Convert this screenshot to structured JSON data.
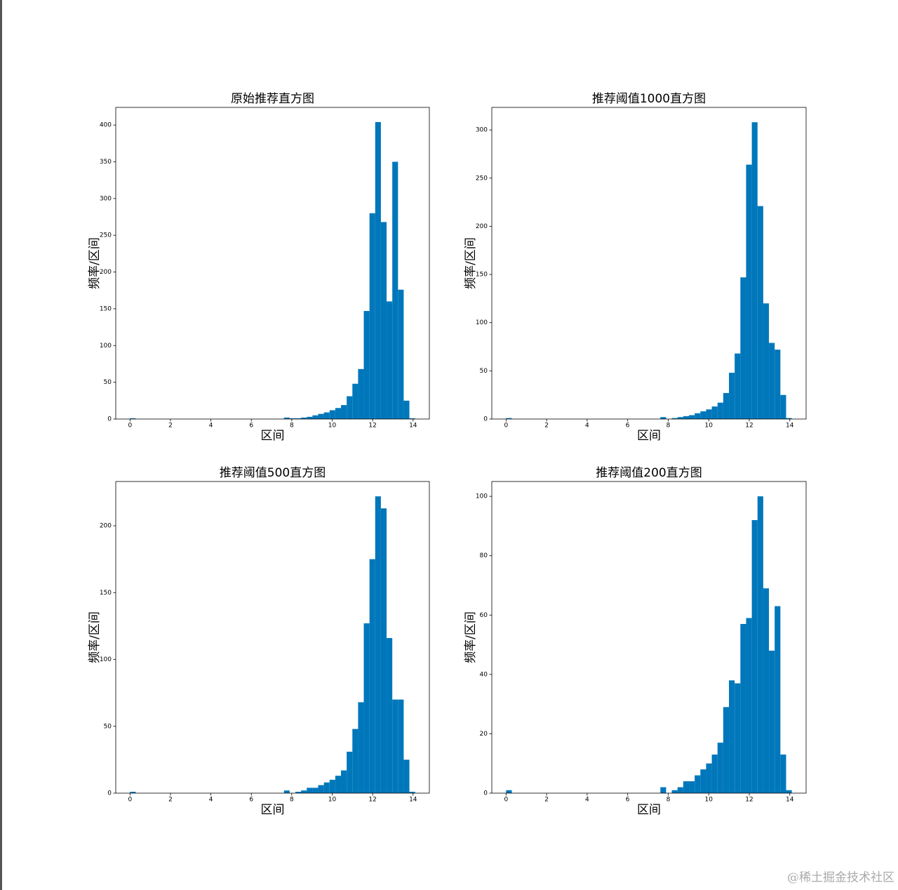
{
  "chart_data": [
    {
      "type": "histogram",
      "title": "原始推荐直方图",
      "xlabel": "区间",
      "ylabel": "频率/区间",
      "color": "#0077bb",
      "bins": [
        0,
        0.282,
        0.564,
        0.846,
        1.128,
        1.41,
        1.692,
        1.974,
        2.256,
        2.538,
        2.82,
        3.102,
        3.384,
        3.666,
        3.948,
        4.23,
        4.512,
        4.794,
        5.076,
        5.358,
        5.64,
        5.922,
        6.204,
        6.486,
        6.768,
        7.05,
        7.332,
        7.614,
        7.896,
        8.178,
        8.46,
        8.742,
        9.024,
        9.306,
        9.588,
        9.87,
        10.152,
        10.434,
        10.716,
        10.998,
        11.28,
        11.562,
        11.844,
        12.126,
        12.408,
        12.69,
        12.972,
        13.254,
        13.536,
        13.818,
        14.1
      ],
      "values": [
        1,
        0,
        0,
        0,
        0,
        0,
        0,
        0,
        0,
        0,
        0,
        0,
        0,
        0,
        0,
        0,
        0,
        0,
        0,
        0,
        0,
        0,
        0,
        0,
        0,
        0,
        0,
        2,
        1,
        1,
        2,
        3,
        5,
        7,
        9,
        12,
        15,
        19,
        31,
        48,
        68,
        147,
        280,
        404,
        268,
        160,
        350,
        176,
        25,
        1
      ],
      "xlim": [
        -0.705,
        14.805
      ],
      "xticks": [
        0,
        2,
        4,
        6,
        8,
        10,
        12,
        14
      ],
      "ylim": [
        0,
        424
      ],
      "yticks": [
        0,
        50,
        100,
        150,
        200,
        250,
        300,
        350,
        400
      ]
    },
    {
      "type": "histogram",
      "title": "推荐阈值1000直方图",
      "xlabel": "区间",
      "ylabel": "频率/区间",
      "color": "#0077bb",
      "bins": [
        0,
        0.282,
        0.564,
        0.846,
        1.128,
        1.41,
        1.692,
        1.974,
        2.256,
        2.538,
        2.82,
        3.102,
        3.384,
        3.666,
        3.948,
        4.23,
        4.512,
        4.794,
        5.076,
        5.358,
        5.64,
        5.922,
        6.204,
        6.486,
        6.768,
        7.05,
        7.332,
        7.614,
        7.896,
        8.178,
        8.46,
        8.742,
        9.024,
        9.306,
        9.588,
        9.87,
        10.152,
        10.434,
        10.716,
        10.998,
        11.28,
        11.562,
        11.844,
        12.126,
        12.408,
        12.69,
        12.972,
        13.254,
        13.536,
        13.818,
        14.1
      ],
      "values": [
        1,
        0,
        0,
        0,
        0,
        0,
        0,
        0,
        0,
        0,
        0,
        0,
        0,
        0,
        0,
        0,
        0,
        0,
        0,
        0,
        0,
        0,
        0,
        0,
        0,
        0,
        0,
        2,
        0,
        1,
        2,
        3,
        4,
        6,
        8,
        10,
        13,
        17,
        27,
        48,
        68,
        147,
        264,
        308,
        221,
        120,
        79,
        72,
        25,
        1
      ],
      "xlim": [
        -0.705,
        14.805
      ],
      "xticks": [
        0,
        2,
        4,
        6,
        8,
        10,
        12,
        14
      ],
      "ylim": [
        0,
        323.4
      ],
      "yticks": [
        0,
        50,
        100,
        150,
        200,
        250,
        300
      ]
    },
    {
      "type": "histogram",
      "title": "推荐阈值500直方图",
      "xlabel": "区间",
      "ylabel": "频率/区间",
      "color": "#0077bb",
      "bins": [
        0,
        0.282,
        0.564,
        0.846,
        1.128,
        1.41,
        1.692,
        1.974,
        2.256,
        2.538,
        2.82,
        3.102,
        3.384,
        3.666,
        3.948,
        4.23,
        4.512,
        4.794,
        5.076,
        5.358,
        5.64,
        5.922,
        6.204,
        6.486,
        6.768,
        7.05,
        7.332,
        7.614,
        7.896,
        8.178,
        8.46,
        8.742,
        9.024,
        9.306,
        9.588,
        9.87,
        10.152,
        10.434,
        10.716,
        10.998,
        11.28,
        11.562,
        11.844,
        12.126,
        12.408,
        12.69,
        12.972,
        13.254,
        13.536,
        13.818,
        14.1
      ],
      "values": [
        1,
        0,
        0,
        0,
        0,
        0,
        0,
        0,
        0,
        0,
        0,
        0,
        0,
        0,
        0,
        0,
        0,
        0,
        0,
        0,
        0,
        0,
        0,
        0,
        0,
        0,
        0,
        2,
        0,
        1,
        2,
        4,
        4,
        6,
        8,
        10,
        13,
        17,
        31,
        48,
        68,
        127,
        175,
        222,
        213,
        116,
        70,
        70,
        25,
        1
      ],
      "xlim": [
        -0.705,
        14.805
      ],
      "xticks": [
        0,
        2,
        4,
        6,
        8,
        10,
        12,
        14
      ],
      "ylim": [
        0,
        233.1
      ],
      "yticks": [
        0,
        50,
        100,
        150,
        200
      ]
    },
    {
      "type": "histogram",
      "title": "推荐阈值200直方图",
      "xlabel": "区间",
      "ylabel": "频率/区间",
      "color": "#0077bb",
      "bins": [
        0,
        0.282,
        0.564,
        0.846,
        1.128,
        1.41,
        1.692,
        1.974,
        2.256,
        2.538,
        2.82,
        3.102,
        3.384,
        3.666,
        3.948,
        4.23,
        4.512,
        4.794,
        5.076,
        5.358,
        5.64,
        5.922,
        6.204,
        6.486,
        6.768,
        7.05,
        7.332,
        7.614,
        7.896,
        8.178,
        8.46,
        8.742,
        9.024,
        9.306,
        9.588,
        9.87,
        10.152,
        10.434,
        10.716,
        10.998,
        11.28,
        11.562,
        11.844,
        12.126,
        12.408,
        12.69,
        12.972,
        13.254,
        13.536,
        13.818,
        14.1
      ],
      "values": [
        1,
        0,
        0,
        0,
        0,
        0,
        0,
        0,
        0,
        0,
        0,
        0,
        0,
        0,
        0,
        0,
        0,
        0,
        0,
        0,
        0,
        0,
        0,
        0,
        0,
        0,
        0,
        2,
        0,
        1,
        2,
        4,
        4,
        6,
        8,
        10,
        13,
        17,
        29,
        38,
        37,
        57,
        59,
        92,
        100,
        69,
        48,
        63,
        13,
        1
      ],
      "xlim": [
        -0.705,
        14.805
      ],
      "xticks": [
        0,
        2,
        4,
        6,
        8,
        10,
        12,
        14
      ],
      "ylim": [
        0,
        105
      ],
      "yticks": [
        0,
        20,
        40,
        60,
        80,
        100
      ]
    }
  ],
  "watermark": "@稀土掘金技术社区"
}
